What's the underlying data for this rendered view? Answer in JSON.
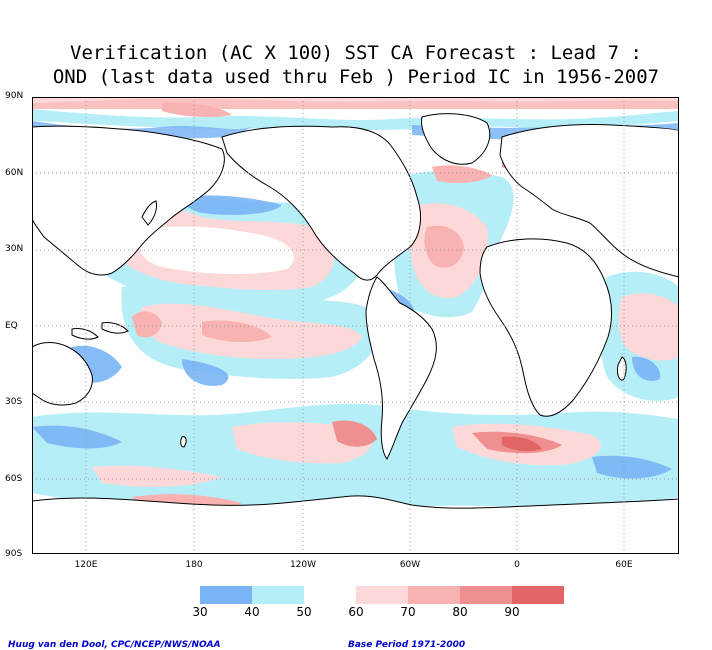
{
  "title": {
    "line1": "Verification (AC X 100) SST CA Forecast : Lead 7 :",
    "line2": "OND (last data used thru Feb ) Period IC in 1956-2007"
  },
  "lat_labels": [
    "90N",
    "60N",
    "30N",
    "EQ",
    "30S",
    "60S",
    "90S"
  ],
  "lon_labels": [
    "120E",
    "180",
    "120W",
    "60W",
    "0",
    "60E"
  ],
  "legend": {
    "labels": [
      "30",
      "40",
      "50",
      "60",
      "70",
      "80",
      "90"
    ],
    "colors": [
      "#7ab4f5",
      "#b6eef8",
      "#ffffff",
      "#fdd8d8",
      "#f9b2b2",
      "#f08f8f",
      "#e26464"
    ]
  },
  "footer": {
    "left": "Huug van den Dool, CPC/NCEP/NWS/NOAA",
    "right": "Base Period 1971-2000"
  },
  "colors": {
    "blue_dark": "#7ab4f5",
    "blue_light": "#b6eef8",
    "pink_light": "#fdd8d8",
    "pink_mid": "#f9b2b2",
    "red_mid": "#f08f8f",
    "red_dark": "#e26464"
  }
}
